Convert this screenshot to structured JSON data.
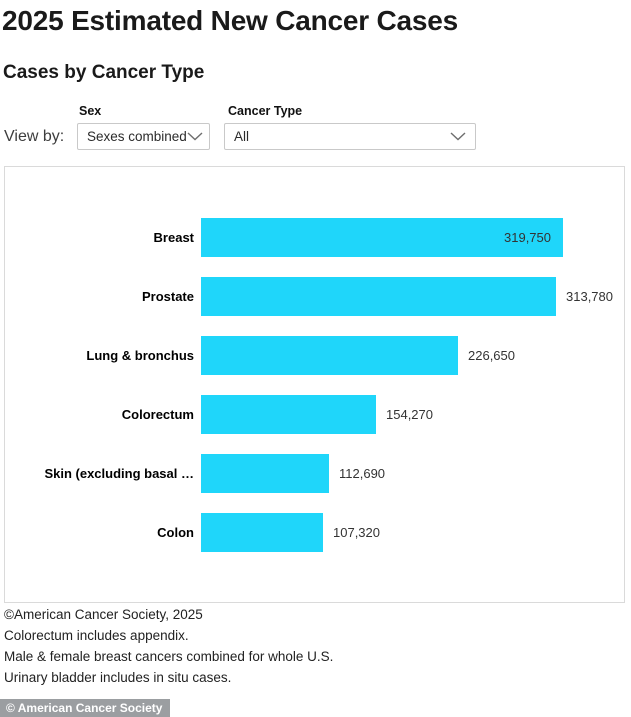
{
  "header": {
    "title": "2025 Estimated New Cancer Cases",
    "subtitle": "Cases by Cancer Type"
  },
  "controls": {
    "view_by_label": "View by:",
    "sex_filter": {
      "label": "Sex",
      "selected_value": "Sexes combined"
    },
    "cancer_type_filter": {
      "label": "Cancer Type",
      "selected_value": "All"
    }
  },
  "chart_data": {
    "type": "bar",
    "orientation": "horizontal",
    "title": "Cases by Cancer Type",
    "categories": [
      "Breast",
      "Prostate",
      "Lung & bronchus",
      "Colorectum",
      "Skin (excluding basal …",
      "Colon"
    ],
    "values": [
      319750,
      313780,
      226650,
      154270,
      112690,
      107320
    ],
    "value_labels": [
      "319,750",
      "313,780",
      "226,650",
      "154,270",
      "112,690",
      "107,320"
    ],
    "bar_color": "#1fd6fa",
    "axis_visible": false,
    "legend": "none",
    "gridlines": false
  },
  "footer": {
    "lines": [
      "©American Cancer Society, 2025",
      "Colorectum includes appendix.",
      "Male & female breast cancers combined for whole U.S.",
      "Urinary bladder includes in situ cases."
    ]
  },
  "badge": {
    "label": "© American Cancer Society"
  }
}
